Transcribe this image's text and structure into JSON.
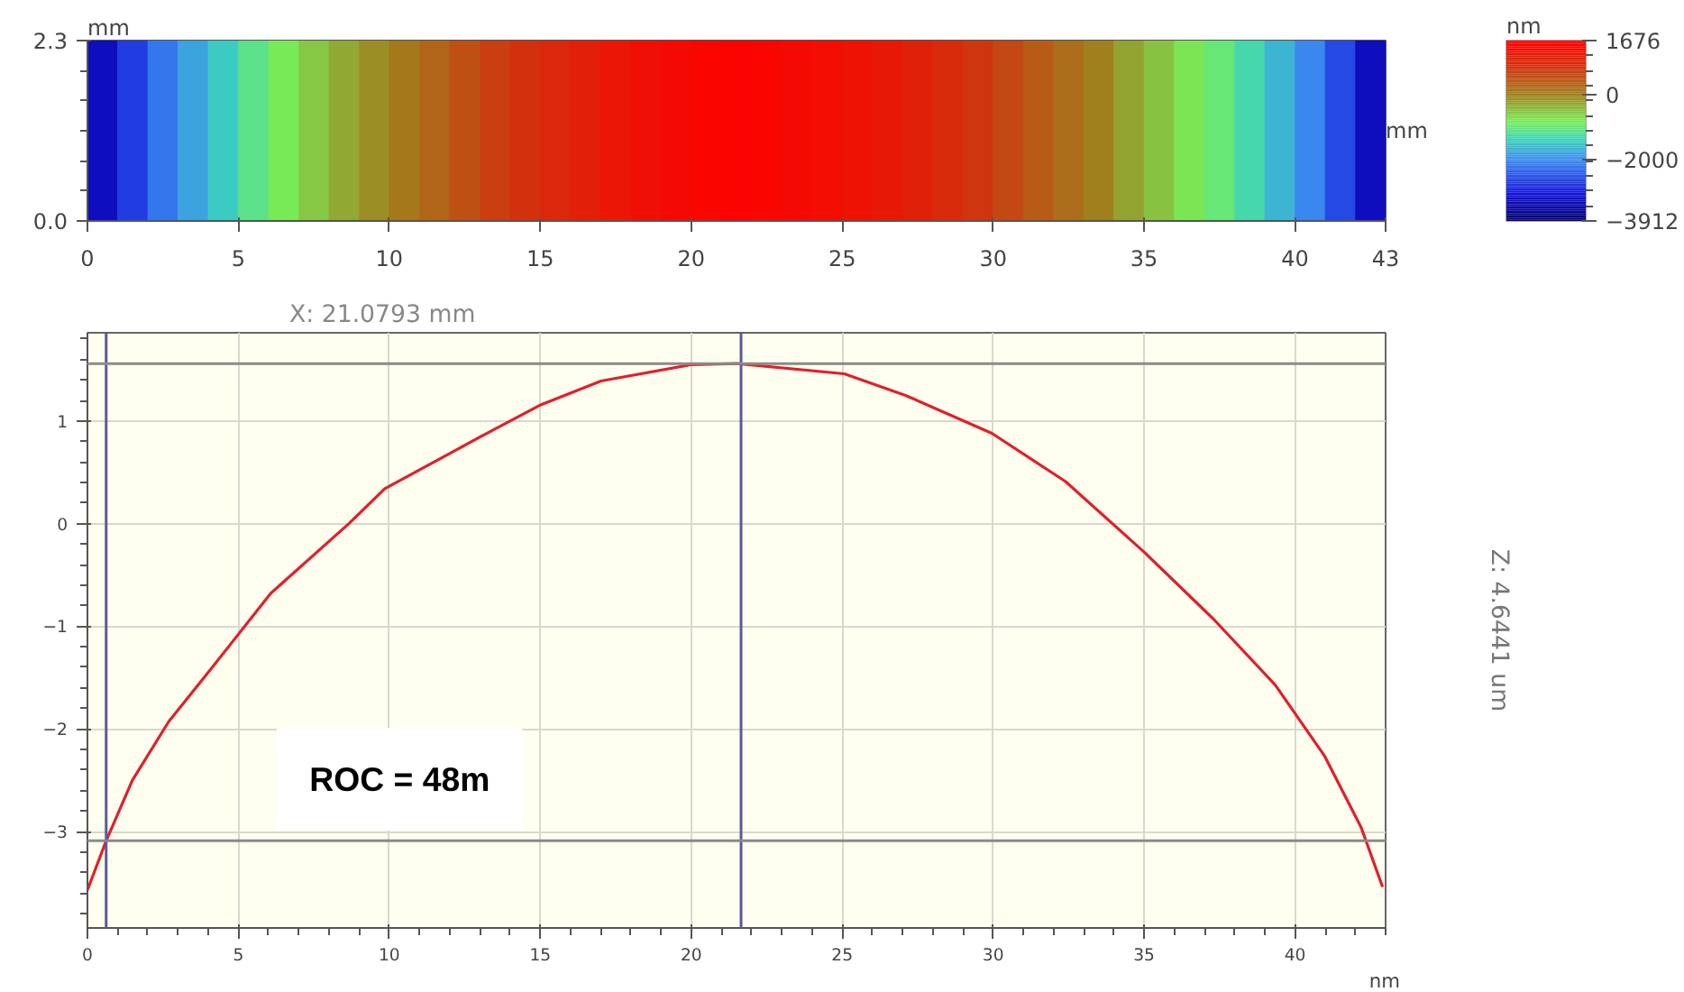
{
  "chart_data": [
    {
      "type": "heatmap",
      "xlabel": "mm",
      "ylabel": "mm",
      "clabel": "nm",
      "xlim": [
        0,
        43
      ],
      "xticks": [
        0,
        5,
        10,
        15,
        20,
        25,
        30,
        35,
        40,
        43
      ],
      "ylim": [
        0,
        2.3
      ],
      "yticks": [
        {
          "value": 0,
          "label": "0.0"
        },
        2.3
      ],
      "x": [
        0.5,
        1.5,
        2.5,
        3.5,
        4.5,
        5.5,
        6.5,
        7.5,
        8.5,
        9.5,
        10.5,
        11.5,
        12.5,
        13.5,
        14.5,
        15.5,
        16.5,
        17.5,
        18.5,
        19.5,
        20.5,
        21.5,
        22.5,
        23.5,
        24.5,
        25.5,
        26.5,
        27.5,
        28.5,
        29.5,
        30.5,
        31.5,
        32.5,
        33.5,
        34.5,
        35.5,
        36.5,
        37.5,
        38.5,
        39.5,
        40.5,
        41.5,
        42.5
      ],
      "cells": [
        [
          -3300,
          -2700,
          -2200,
          -1800,
          -1450,
          -1100,
          -800,
          -550,
          -300,
          -100,
          100,
          300,
          500,
          700,
          850,
          1000,
          1150,
          1300,
          1400,
          1500,
          1550,
          1600,
          1550,
          1500,
          1450,
          1350,
          1250,
          1100,
          950,
          800,
          600,
          400,
          200,
          0,
          -250,
          -500,
          -750,
          -1000,
          -1300,
          -1650,
          -2050,
          -2600,
          -3300
        ]
      ],
      "clim": [
        -3912,
        1676
      ],
      "cticks": [
        1676,
        0,
        -2000,
        -3912
      ]
    },
    {
      "type": "line",
      "xlabel": "nm",
      "xlim": [
        0,
        43
      ],
      "xticks": [
        0,
        5,
        10,
        15,
        20,
        25,
        30,
        35,
        40
      ],
      "ylim": [
        -3.94,
        1.86
      ],
      "yticks": [
        1,
        0,
        -1,
        -2,
        -3
      ],
      "grid": true,
      "marker": "none",
      "line_style": "solid",
      "series": [
        {
          "color": "#e0202a",
          "x": [
            0,
            0.62,
            1.49,
            2.69,
            4.08,
            6.07,
            8.66,
            9.85,
            13.04,
            15.03,
            17.01,
            20.0,
            21.5,
            25.07,
            27.1,
            29.96,
            32.4,
            35.05,
            37.3,
            39.34,
            40.97,
            42.19,
            42.9
          ],
          "values": [
            -3.57,
            -3.09,
            -2.5,
            -1.93,
            -1.42,
            -0.68,
            0.0,
            0.34,
            0.85,
            1.16,
            1.39,
            1.55,
            1.56,
            1.46,
            1.25,
            0.88,
            0.41,
            -0.29,
            -0.93,
            -1.57,
            -2.26,
            -2.96,
            -3.54
          ]
        }
      ],
      "ref_lines": [
        {
          "axis": "x",
          "value": 0.62,
          "color": "#5a5a9a"
        },
        {
          "axis": "x",
          "value": 21.65,
          "color": "#5a5a9a"
        },
        {
          "axis": "y",
          "value": 1.56,
          "color": "#8a8a8a"
        },
        {
          "axis": "y",
          "value": -3.09,
          "color": "#8a8a8a"
        }
      ],
      "annotations": [
        "X: 21.0793 mm",
        "Z: 4.6441 um",
        "ROC = 48m"
      ]
    }
  ]
}
